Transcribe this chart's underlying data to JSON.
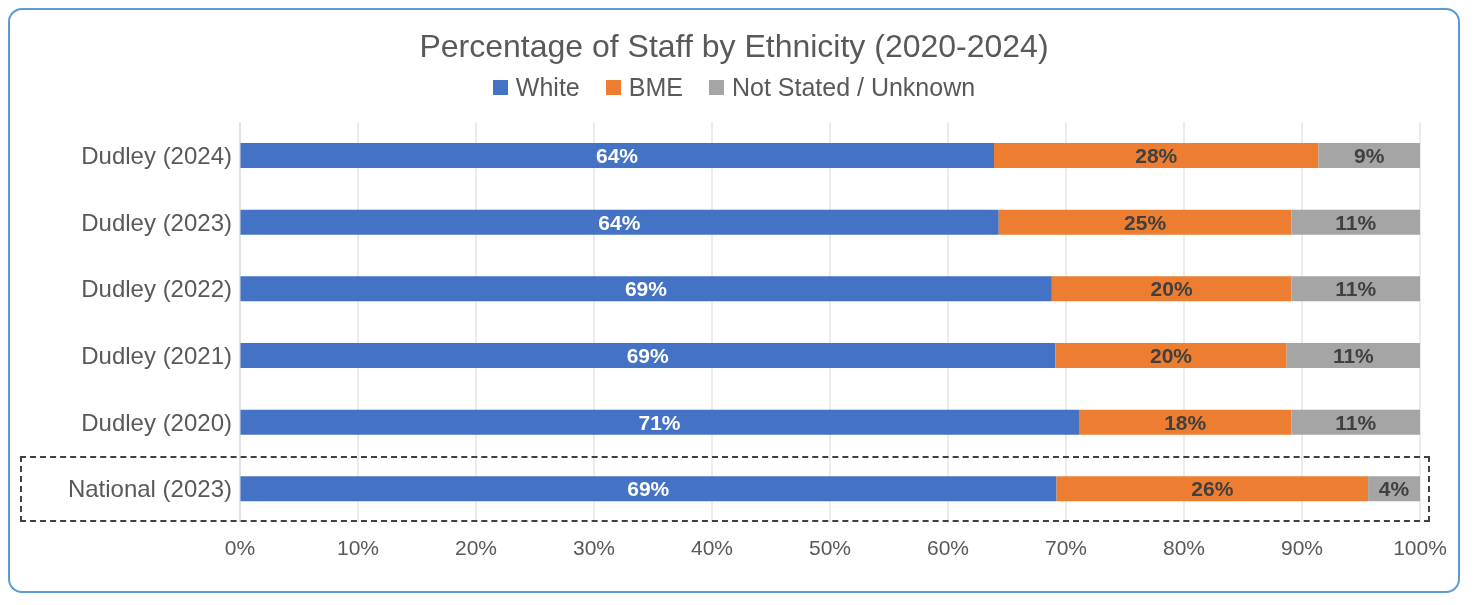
{
  "chart_data": {
    "type": "bar",
    "title": "Percentage of Staff by Ethnicity (2020-2024)",
    "orientation": "horizontal",
    "stacked": true,
    "legend": "top",
    "categories": [
      "Dudley (2024)",
      "Dudley (2023)",
      "Dudley (2022)",
      "Dudley (2021)",
      "Dudley (2020)",
      "National (2023)"
    ],
    "series": [
      {
        "name": "White",
        "color": "#4472c4",
        "values": [
          63.9,
          64.3,
          68.8,
          69.1,
          71.1,
          69.2
        ],
        "value_labels": [
          "64%",
          "64%",
          "69%",
          "69%",
          "71%",
          "69%"
        ]
      },
      {
        "name": "BME",
        "color": "#ed7d31",
        "values": [
          27.5,
          24.8,
          20.3,
          19.6,
          18.0,
          26.4
        ],
        "value_labels": [
          "28%",
          "25%",
          "20%",
          "20%",
          "18%",
          "26%"
        ]
      },
      {
        "name": "Not Stated / Unknown",
        "color": "#a5a5a5",
        "values": [
          8.6,
          10.9,
          10.9,
          11.3,
          10.9,
          4.4
        ],
        "value_labels": [
          "9%",
          "11%",
          "11%",
          "11%",
          "11%",
          "4%"
        ]
      }
    ],
    "xlim": [
      0,
      100
    ],
    "xticks": [
      {
        "value": 0,
        "label": "0%"
      },
      {
        "value": 10,
        "label": "10%"
      },
      {
        "value": 20,
        "label": "20%"
      },
      {
        "value": 30,
        "label": "30%"
      },
      {
        "value": 40,
        "label": "40%"
      },
      {
        "value": 50,
        "label": "50%"
      },
      {
        "value": 60,
        "label": "60%"
      },
      {
        "value": 70,
        "label": "70%"
      },
      {
        "value": 80,
        "label": "80%"
      },
      {
        "value": 90,
        "label": "90%"
      },
      {
        "value": 100,
        "label": "100%"
      }
    ],
    "grid": "x"
  }
}
